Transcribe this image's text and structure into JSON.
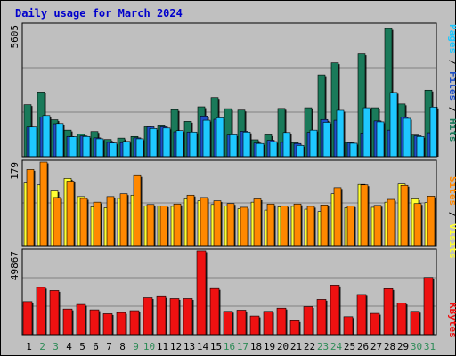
{
  "title": "Daily usage for March 2024",
  "colors": {
    "title": "#0000cc",
    "panel_bg": "#bfbfbf",
    "grid": "#808080",
    "hits": "#1a7a5a",
    "files": "#1e50c8",
    "pages": "#1ec8ff",
    "visits": "#ffff33",
    "sites": "#ff8800",
    "kbytes": "#ee1111",
    "weekday": "#000000",
    "weekend": "#2e8b57"
  },
  "chart_data": [
    {
      "type": "bar",
      "name": "hits-files-pages",
      "ylabel_parts": [
        "Pages",
        "Files",
        "Hits"
      ],
      "ymax_label": "5605",
      "ylim": [
        0,
        5605
      ],
      "categories": [
        "1",
        "2",
        "3",
        "4",
        "5",
        "6",
        "7",
        "8",
        "9",
        "10",
        "11",
        "12",
        "13",
        "14",
        "15",
        "16",
        "17",
        "18",
        "19",
        "20",
        "21",
        "22",
        "23",
        "24",
        "25",
        "26",
        "27",
        "28",
        "29",
        "30",
        "31"
      ],
      "series": [
        {
          "name": "Hits",
          "values": [
            2210,
            2750,
            1570,
            1130,
            960,
            1070,
            730,
            790,
            860,
            1270,
            1310,
            2000,
            1500,
            2120,
            2510,
            2040,
            1980,
            720,
            930,
            2050,
            590,
            2080,
            3480,
            3990,
            610,
            4370,
            2080,
            5450,
            2240,
            920,
            2830
          ]
        },
        {
          "name": "Files",
          "values": [
            1260,
            1690,
            1400,
            860,
            880,
            800,
            610,
            600,
            800,
            1270,
            1270,
            1060,
            1050,
            1730,
            1590,
            920,
            1080,
            580,
            700,
            610,
            560,
            1040,
            1580,
            1550,
            590,
            1010,
            1520,
            1130,
            1680,
            890,
            1020
          ]
        },
        {
          "name": "Pages",
          "values": [
            1260,
            1750,
            1410,
            850,
            860,
            760,
            580,
            650,
            760,
            1200,
            1220,
            1110,
            1050,
            1550,
            1650,
            930,
            1050,
            560,
            640,
            1030,
            480,
            1130,
            1460,
            1970,
            570,
            2080,
            1480,
            2730,
            1630,
            860,
            2110
          ]
        }
      ]
    },
    {
      "type": "bar",
      "name": "visits-sites",
      "ylabel_parts": [
        "Sites",
        "Visits"
      ],
      "ymax_label": "179",
      "ylim": [
        0,
        179
      ],
      "categories": [
        "1",
        "2",
        "3",
        "4",
        "5",
        "6",
        "7",
        "8",
        "9",
        "10",
        "11",
        "12",
        "13",
        "14",
        "15",
        "16",
        "17",
        "18",
        "19",
        "20",
        "21",
        "22",
        "23",
        "24",
        "25",
        "26",
        "27",
        "28",
        "29",
        "30",
        "31"
      ],
      "series": [
        {
          "name": "Visits",
          "values": [
            134,
            130,
            117,
            144,
            105,
            83,
            81,
            101,
            108,
            85,
            85,
            84,
            100,
            96,
            88,
            85,
            79,
            93,
            76,
            83,
            84,
            78,
            73,
            111,
            81,
            131,
            82,
            93,
            132,
            100,
            92
          ]
        },
        {
          "name": "Sites",
          "values": [
            163,
            179,
            103,
            138,
            101,
            93,
            105,
            111,
            150,
            88,
            85,
            89,
            108,
            103,
            96,
            90,
            82,
            100,
            89,
            85,
            89,
            84,
            87,
            124,
            85,
            130,
            86,
            99,
            129,
            90,
            106
          ]
        }
      ]
    },
    {
      "type": "bar",
      "name": "kbytes",
      "ylabel_parts": [
        "KBytes"
      ],
      "ymax_label": "49867",
      "ylim": [
        0,
        49867
      ],
      "categories": [
        "1",
        "2",
        "3",
        "4",
        "5",
        "6",
        "7",
        "8",
        "9",
        "10",
        "11",
        "12",
        "13",
        "14",
        "15",
        "16",
        "17",
        "18",
        "19",
        "20",
        "21",
        "22",
        "23",
        "24",
        "25",
        "26",
        "27",
        "28",
        "29",
        "30",
        "31"
      ],
      "series": [
        {
          "name": "KBytes",
          "values": [
            19700,
            28200,
            26300,
            15300,
            18000,
            14800,
            12500,
            13200,
            14300,
            22000,
            22700,
            21500,
            21500,
            49900,
            27500,
            13900,
            14600,
            11100,
            13900,
            15800,
            8300,
            16700,
            21000,
            29500,
            10700,
            23900,
            12700,
            27400,
            18800,
            13900,
            34100
          ]
        }
      ]
    }
  ],
  "days": [
    {
      "label": "1",
      "weekend": false
    },
    {
      "label": "2",
      "weekend": true
    },
    {
      "label": "3",
      "weekend": true
    },
    {
      "label": "4",
      "weekend": false
    },
    {
      "label": "5",
      "weekend": false
    },
    {
      "label": "6",
      "weekend": false
    },
    {
      "label": "7",
      "weekend": false
    },
    {
      "label": "8",
      "weekend": false
    },
    {
      "label": "9",
      "weekend": true
    },
    {
      "label": "10",
      "weekend": true
    },
    {
      "label": "11",
      "weekend": false
    },
    {
      "label": "12",
      "weekend": false
    },
    {
      "label": "13",
      "weekend": false
    },
    {
      "label": "14",
      "weekend": false
    },
    {
      "label": "15",
      "weekend": false
    },
    {
      "label": "16",
      "weekend": true
    },
    {
      "label": "17",
      "weekend": true
    },
    {
      "label": "18",
      "weekend": false
    },
    {
      "label": "19",
      "weekend": false
    },
    {
      "label": "20",
      "weekend": false
    },
    {
      "label": "21",
      "weekend": false
    },
    {
      "label": "22",
      "weekend": false
    },
    {
      "label": "23",
      "weekend": true
    },
    {
      "label": "24",
      "weekend": true
    },
    {
      "label": "25",
      "weekend": false
    },
    {
      "label": "26",
      "weekend": false
    },
    {
      "label": "27",
      "weekend": false
    },
    {
      "label": "28",
      "weekend": false
    },
    {
      "label": "29",
      "weekend": false
    },
    {
      "label": "30",
      "weekend": true
    },
    {
      "label": "31",
      "weekend": true
    }
  ]
}
